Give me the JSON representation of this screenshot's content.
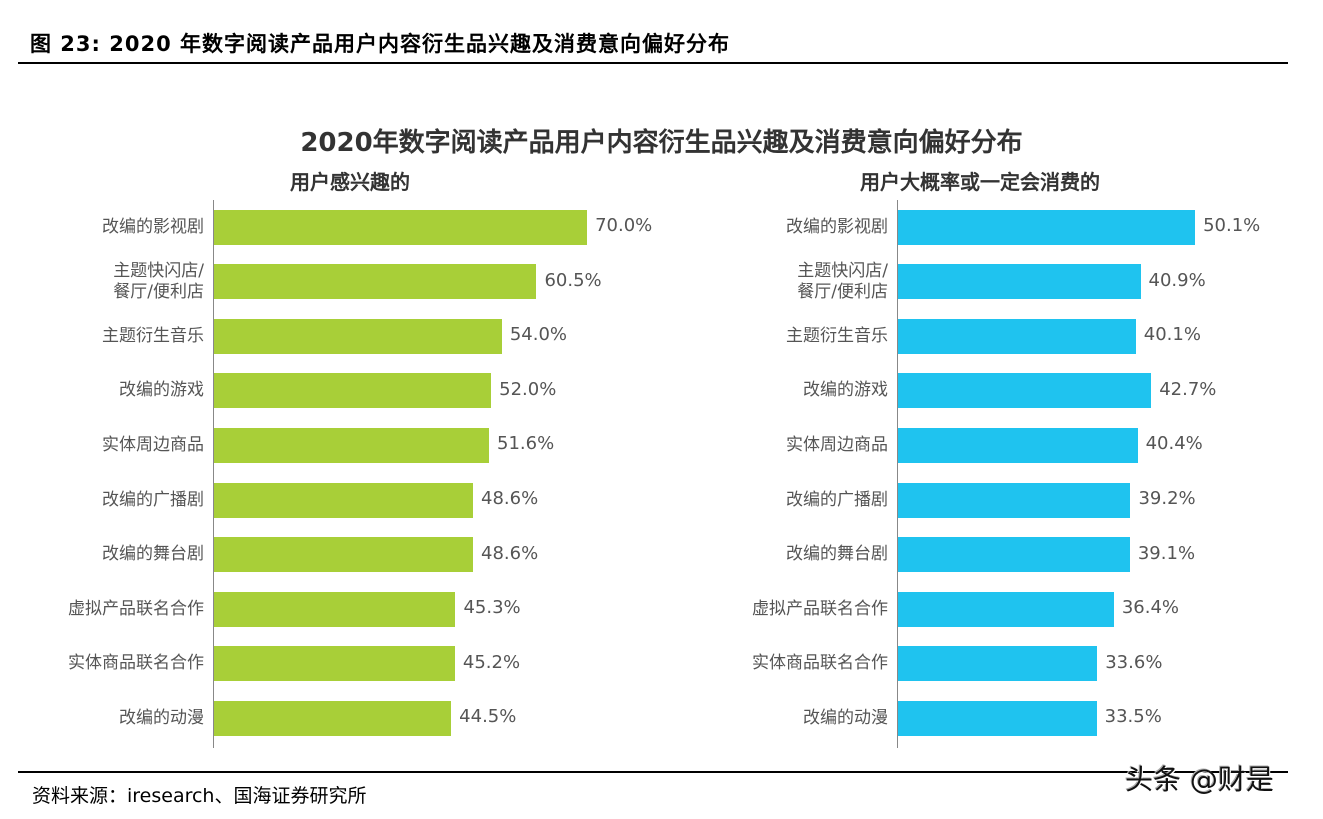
{
  "header": {
    "title": "图 23:  2020 年数字阅读产品用户内容衍生品兴趣及消费意向偏好分布"
  },
  "footer": {
    "source": "资料来源：iresearch、国海证券研究所",
    "watermark": "头条 @财是"
  },
  "chart_data": [
    {
      "type": "bar",
      "orientation": "horizontal",
      "title": "2020年数字阅读产品用户内容衍生品兴趣及消费意向偏好分布",
      "subtitle": "用户感兴趣的",
      "color": "#a8cf38",
      "categories": [
        "改编的影视剧",
        "主题快闪店/\n餐厅/便利店",
        "主题衍生音乐",
        "改编的游戏",
        "实体周边商品",
        "改编的广播剧",
        "改编的舞台剧",
        "虚拟产品联名合作",
        "实体商品联名合作",
        "改编的动漫"
      ],
      "values": [
        70.0,
        60.5,
        54.0,
        52.0,
        51.6,
        48.6,
        48.6,
        45.3,
        45.2,
        44.5
      ],
      "labels": [
        "70.0%",
        "60.5%",
        "54.0%",
        "52.0%",
        "51.6%",
        "48.6%",
        "48.6%",
        "45.3%",
        "45.2%",
        "44.5%"
      ]
    },
    {
      "type": "bar",
      "orientation": "horizontal",
      "subtitle": "用户大概率或一定会消费的",
      "color": "#1fc3ef",
      "categories": [
        "改编的影视剧",
        "主题快闪店/\n餐厅/便利店",
        "主题衍生音乐",
        "改编的游戏",
        "实体周边商品",
        "改编的广播剧",
        "改编的舞台剧",
        "虚拟产品联名合作",
        "实体商品联名合作",
        "改编的动漫"
      ],
      "values": [
        50.1,
        40.9,
        40.1,
        42.7,
        40.4,
        39.2,
        39.1,
        36.4,
        33.6,
        33.5
      ],
      "labels": [
        "50.1%",
        "40.9%",
        "40.1%",
        "42.7%",
        "40.4%",
        "39.2%",
        "39.1%",
        "36.4%",
        "33.6%",
        "33.5%"
      ]
    }
  ]
}
